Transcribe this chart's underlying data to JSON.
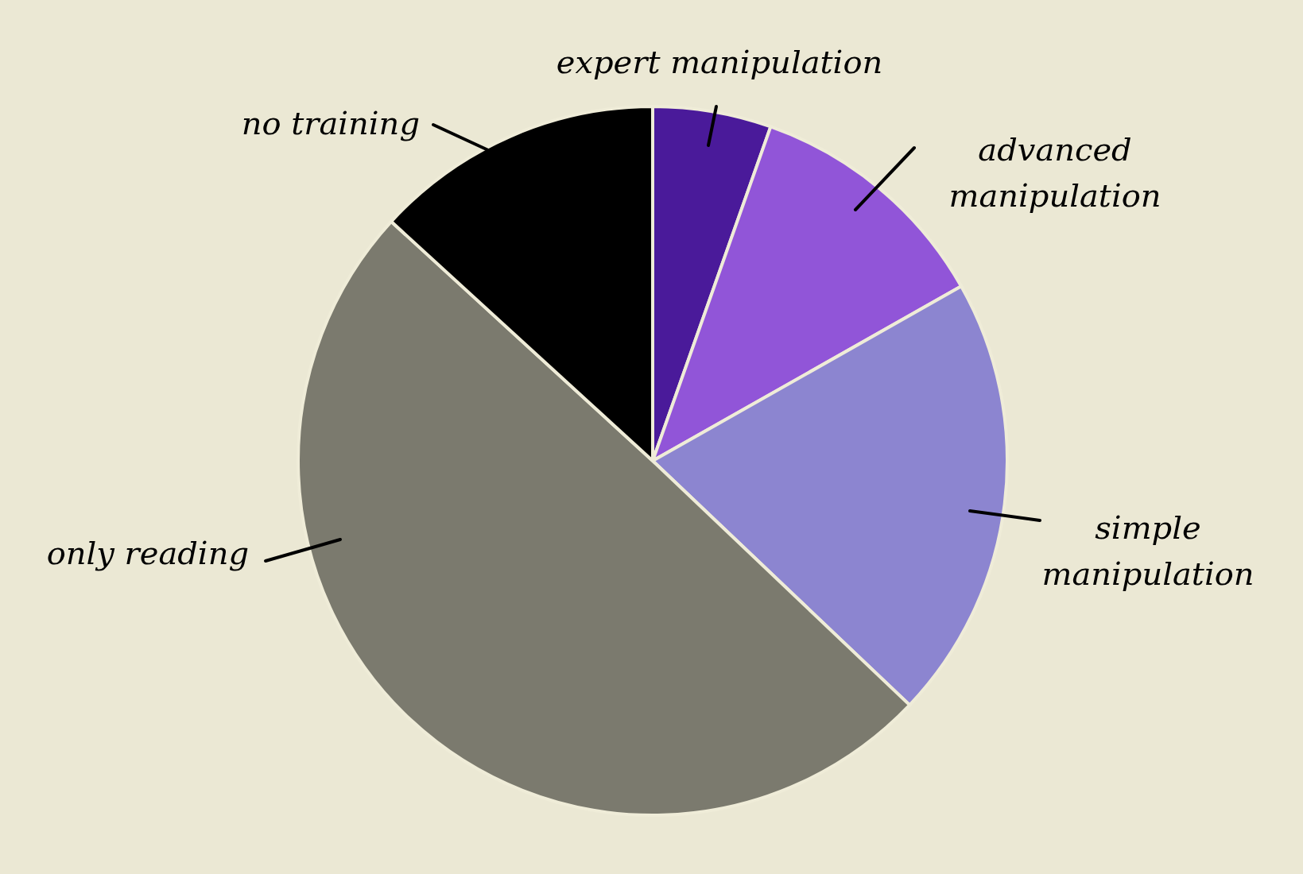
{
  "chart_data": {
    "type": "pie",
    "categories": [
      "expert manipulation",
      "advanced manipulation",
      "simple manipulation",
      "only reading",
      "no training"
    ],
    "values": [
      5.4,
      11.4,
      20.3,
      49.7,
      13.2
    ],
    "colors": [
      "#4a1a9a",
      "#9155d8",
      "#8c85d0",
      "#7b7a6e",
      "#000000"
    ]
  }
}
